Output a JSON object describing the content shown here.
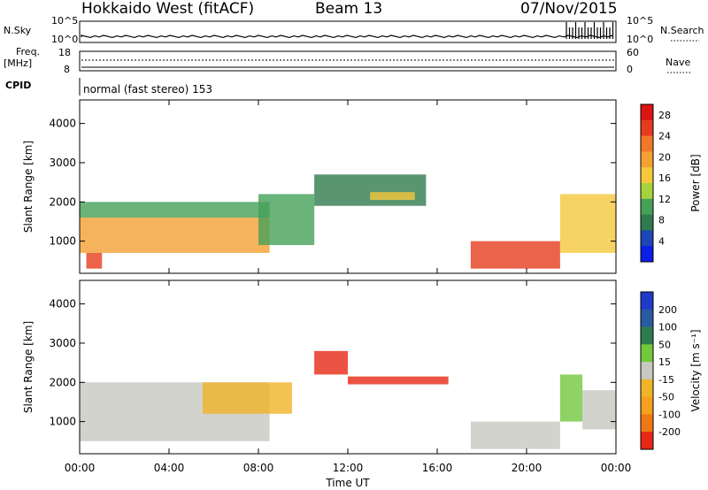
{
  "header": {
    "station": "Hokkaido West (fitACF)",
    "beam": "Beam 13",
    "date": "07/Nov/2015"
  },
  "status_panel": {
    "nsky_label": "N.Sky",
    "nsearch_label": "N.Search",
    "noise_ticks": [
      "10^5",
      "10^0"
    ],
    "freq_label": "Freq.",
    "freq_unit": "[MHz]",
    "freq_ticks": [
      "18",
      "8"
    ],
    "nave_label": "Nave",
    "nave_ticks": [
      "60",
      "0"
    ],
    "cpid_label": "CPID",
    "cpid_text": "normal (fast stereo) 153"
  },
  "colors": {
    "power_scale": [
      "#0a1ee6",
      "#1e46b4",
      "#2f7a4e",
      "#45a058",
      "#a8d23c",
      "#f5c83c",
      "#f5a032",
      "#f07828",
      "#e63c1e",
      "#dc1414"
    ],
    "velocity_scale": [
      "#1e3cc8",
      "#2a5aa0",
      "#2e7d4e",
      "#72c83c",
      "#c8c8c0",
      "#f0b428",
      "#f5a01e",
      "#f07814",
      "#e62814"
    ]
  },
  "chart_data": [
    {
      "type": "heatmap",
      "name": "Power",
      "xlabel": "",
      "ylabel": "Slant Range [km]",
      "x_ticks": [
        "00:00",
        "04:00",
        "08:00",
        "12:00",
        "16:00",
        "20:00",
        "00:00"
      ],
      "x_range_hours": [
        0,
        24
      ],
      "y_ticks": [
        "1000",
        "2000",
        "3000",
        "4000"
      ],
      "ylim": [
        180,
        4600
      ],
      "colorbar": {
        "label": "Power [dB]",
        "tick_labels": [
          "4",
          "8",
          "12",
          "16",
          "20",
          "24",
          "28"
        ],
        "range": [
          0,
          30
        ]
      },
      "regions": [
        {
          "t": [
            0,
            8.5
          ],
          "r": [
            700,
            1600
          ],
          "value": 20
        },
        {
          "t": [
            0,
            8.5
          ],
          "r": [
            1600,
            2000
          ],
          "value": 10
        },
        {
          "t": [
            0.3,
            1.0
          ],
          "r": [
            300,
            700
          ],
          "value": 26
        },
        {
          "t": [
            8.0,
            10.5
          ],
          "r": [
            900,
            2200
          ],
          "value": 9
        },
        {
          "t": [
            10.5,
            15.5
          ],
          "r": [
            1900,
            2700
          ],
          "value": 6
        },
        {
          "t": [
            13.0,
            15.0
          ],
          "r": [
            2050,
            2250
          ],
          "value": 17
        },
        {
          "t": [
            17.5,
            21.5
          ],
          "r": [
            300,
            1000
          ],
          "value": 25
        },
        {
          "t": [
            21.5,
            24
          ],
          "r": [
            700,
            2200
          ],
          "value": 15
        }
      ]
    },
    {
      "type": "heatmap",
      "name": "Velocity",
      "xlabel": "Time UT",
      "ylabel": "Slant Range [km]",
      "x_ticks": [
        "00:00",
        "04:00",
        "08:00",
        "12:00",
        "16:00",
        "20:00",
        "00:00"
      ],
      "x_range_hours": [
        0,
        24
      ],
      "y_ticks": [
        "1000",
        "2000",
        "3000",
        "4000"
      ],
      "ylim": [
        180,
        4600
      ],
      "colorbar": {
        "label": "Velocity [m s⁻¹]",
        "tick_labels": [
          "200",
          "100",
          "50",
          "15",
          "-15",
          "-50",
          "-100",
          "-200"
        ],
        "range": [
          -250,
          250
        ]
      },
      "regions": [
        {
          "t": [
            0,
            8.5
          ],
          "r": [
            500,
            2000
          ],
          "value": 0
        },
        {
          "t": [
            5.5,
            9.5
          ],
          "r": [
            1200,
            2000
          ],
          "value": -40
        },
        {
          "t": [
            10.5,
            12.0
          ],
          "r": [
            2200,
            2800
          ],
          "value": -220
        },
        {
          "t": [
            12.0,
            16.5
          ],
          "r": [
            1950,
            2150
          ],
          "value": -220
        },
        {
          "t": [
            17.5,
            21.5
          ],
          "r": [
            300,
            1000
          ],
          "value": 0
        },
        {
          "t": [
            21.5,
            22.5
          ],
          "r": [
            1000,
            2200
          ],
          "value": 40
        },
        {
          "t": [
            22.5,
            24
          ],
          "r": [
            800,
            1800
          ],
          "value": 0
        }
      ]
    }
  ]
}
